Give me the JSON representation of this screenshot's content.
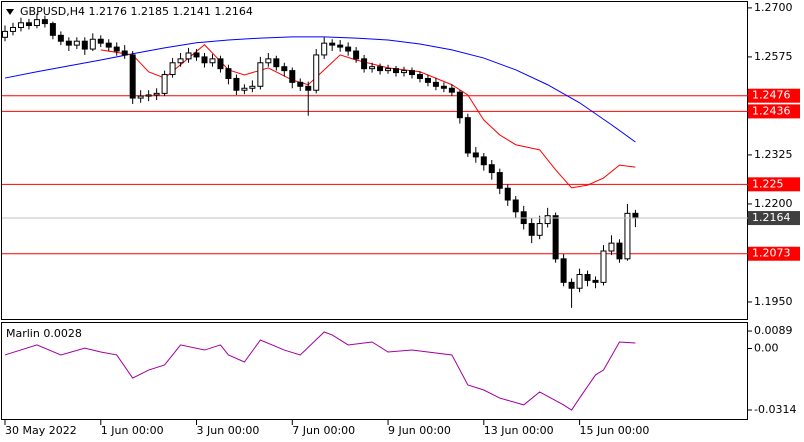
{
  "chart_data": [
    {
      "type": "candlestick",
      "title": "GBPUSD,H4  1.2176 1.2185 1.2141 1.2164",
      "categories": [
        "30 May 2022",
        null,
        null,
        null,
        null,
        null,
        null,
        null,
        null,
        null,
        null,
        null,
        "1 Jun 00:00",
        null,
        null,
        null,
        null,
        null,
        null,
        null,
        null,
        null,
        null,
        null,
        "3 Jun 00:00",
        null,
        null,
        null,
        null,
        null,
        null,
        null,
        null,
        null,
        null,
        null,
        "7 Jun 00:00",
        null,
        null,
        null,
        null,
        null,
        null,
        null,
        null,
        null,
        null,
        null,
        "9 Jun 00:00",
        null,
        null,
        null,
        null,
        null,
        null,
        null,
        null,
        null,
        null,
        null,
        "13 Jun 00:00",
        null,
        null,
        null,
        null,
        null,
        null,
        null,
        null,
        null,
        null,
        null,
        "15 Jun 00:00",
        null,
        null,
        null,
        null,
        null,
        null,
        null
      ],
      "open": [
        1.2625,
        1.264,
        1.265,
        1.2662,
        1.2655,
        1.267,
        1.266,
        1.263,
        1.2615,
        1.2605,
        1.2615,
        1.2595,
        1.262,
        1.261,
        1.26,
        1.259,
        1.258,
        1.247,
        1.2475,
        1.2478,
        1.2482,
        1.253,
        1.256,
        1.257,
        1.2585,
        1.2575,
        1.256,
        1.257,
        1.2545,
        1.252,
        1.249,
        1.2495,
        1.25,
        1.256,
        1.257,
        1.255,
        1.254,
        1.251,
        1.25,
        1.249,
        1.258,
        1.261,
        1.2605,
        1.26,
        1.259,
        1.257,
        1.2545,
        1.255,
        1.254,
        1.2545,
        1.2535,
        1.254,
        1.253,
        1.252,
        1.251,
        1.25,
        1.2495,
        1.2485,
        1.242,
        1.233,
        1.232,
        1.23,
        1.228,
        1.224,
        1.221,
        1.218,
        1.215,
        1.212,
        1.215,
        1.217,
        1.206,
        1.2,
        1.1985,
        1.202,
        1.2005,
        1.2,
        1.208,
        1.21,
        1.206,
        1.2176
      ],
      "high": [
        1.2655,
        1.2662,
        1.2675,
        1.2672,
        1.2685,
        1.268,
        1.2665,
        1.264,
        1.2625,
        1.2625,
        1.2625,
        1.2635,
        1.263,
        1.262,
        1.2612,
        1.2605,
        1.259,
        1.249,
        1.249,
        1.2495,
        1.254,
        1.2572,
        1.2585,
        1.2598,
        1.2595,
        1.2585,
        1.2582,
        1.2578,
        1.2555,
        1.253,
        1.2505,
        1.2515,
        1.2575,
        1.2585,
        1.2578,
        1.256,
        1.2548,
        1.252,
        1.2512,
        1.2595,
        1.2625,
        1.262,
        1.2618,
        1.2612,
        1.26,
        1.258,
        1.256,
        1.2558,
        1.2555,
        1.2552,
        1.255,
        1.2548,
        1.2538,
        1.253,
        1.2522,
        1.251,
        1.2505,
        1.249,
        1.243,
        1.2345,
        1.233,
        1.2312,
        1.229,
        1.225,
        1.222,
        1.2195,
        1.2165,
        1.217,
        1.219,
        1.2178,
        1.2072,
        1.201,
        1.2035,
        1.203,
        1.2015,
        1.2095,
        1.212,
        1.211,
        1.22,
        1.2185
      ],
      "low": [
        1.2615,
        1.263,
        1.264,
        1.2645,
        1.2648,
        1.265,
        1.262,
        1.2605,
        1.259,
        1.2595,
        1.258,
        1.259,
        1.26,
        1.259,
        1.2578,
        1.257,
        1.2455,
        1.2458,
        1.2462,
        1.2465,
        1.2475,
        1.2522,
        1.255,
        1.256,
        1.2565,
        1.2548,
        1.255,
        1.2535,
        1.2505,
        1.2478,
        1.248,
        1.2485,
        1.2492,
        1.255,
        1.254,
        1.2525,
        1.2495,
        1.2488,
        1.2425,
        1.2482,
        1.257,
        1.259,
        1.2588,
        1.2578,
        1.256,
        1.2535,
        1.2535,
        1.253,
        1.2532,
        1.2525,
        1.2525,
        1.252,
        1.251,
        1.25,
        1.249,
        1.2485,
        1.2475,
        1.2405,
        1.232,
        1.2305,
        1.2285,
        1.2262,
        1.2225,
        1.2195,
        1.2165,
        1.2135,
        1.21,
        1.211,
        1.214,
        1.205,
        1.199,
        1.1935,
        1.1975,
        1.199,
        1.1985,
        1.1992,
        1.207,
        1.205,
        1.2055,
        1.2141
      ],
      "close": [
        1.264,
        1.265,
        1.2662,
        1.2655,
        1.267,
        1.266,
        1.263,
        1.2615,
        1.2605,
        1.2615,
        1.2595,
        1.262,
        1.261,
        1.26,
        1.259,
        1.258,
        1.247,
        1.2475,
        1.2478,
        1.2482,
        1.253,
        1.256,
        1.257,
        1.2585,
        1.2575,
        1.256,
        1.257,
        1.2545,
        1.252,
        1.249,
        1.2495,
        1.25,
        1.256,
        1.257,
        1.255,
        1.254,
        1.251,
        1.25,
        1.249,
        1.258,
        1.261,
        1.2605,
        1.26,
        1.259,
        1.257,
        1.2545,
        1.255,
        1.254,
        1.2545,
        1.2535,
        1.254,
        1.253,
        1.252,
        1.251,
        1.25,
        1.2495,
        1.2485,
        1.242,
        1.233,
        1.232,
        1.23,
        1.228,
        1.224,
        1.221,
        1.218,
        1.215,
        1.212,
        1.215,
        1.217,
        1.206,
        1.2,
        1.1985,
        1.202,
        1.2005,
        1.2,
        1.208,
        1.21,
        1.206,
        1.2176,
        1.2164
      ],
      "lines": [
        {
          "color": "#0000ff",
          "x": [
            0,
            4,
            8,
            12,
            16,
            20,
            24,
            28,
            32,
            36,
            40,
            44,
            48,
            52,
            56,
            60,
            64,
            68,
            72,
            76,
            79
          ],
          "values": [
            1.2521,
            1.2537,
            1.2552,
            1.2567,
            1.2583,
            1.2598,
            1.2611,
            1.2618,
            1.2623,
            1.2626,
            1.2626,
            1.2623,
            1.2618,
            1.2608,
            1.2593,
            1.2572,
            1.2542,
            1.2504,
            1.2458,
            1.2402,
            1.2358
          ]
        },
        {
          "color": "#ff0000",
          "x": [
            12,
            16,
            18,
            20,
            25,
            28,
            30,
            33,
            36,
            38,
            40,
            42,
            44,
            48,
            52,
            56,
            58,
            60,
            62,
            64,
            67,
            69,
            71,
            73,
            75,
            77,
            79
          ],
          "values": [
            1.2593,
            1.258,
            1.2537,
            1.2521,
            1.2606,
            1.2542,
            1.2529,
            1.2547,
            1.2516,
            1.2504,
            1.2542,
            1.258,
            1.2567,
            1.2547,
            1.2537,
            1.2504,
            1.2478,
            1.2414,
            1.2376,
            1.2351,
            1.2338,
            1.2287,
            1.2241,
            1.2248,
            1.2266,
            1.2299,
            1.2294
          ]
        }
      ],
      "levels": [
        1.2476,
        1.2436,
        1.225,
        1.2073
      ],
      "level_color": "#ff0000",
      "ylim": [
        1.1904,
        1.2715
      ],
      "yticks": [
        {
          "value": 1.27,
          "label": "1.2700"
        },
        {
          "value": 1.2575,
          "label": "1.2575"
        },
        1.2325,
        {
          "value": 1.22,
          "label": "1.2200"
        },
        {
          "value": 1.195,
          "label": "1.1950"
        }
      ]
    },
    {
      "type": "line",
      "title": "Marlin 0.0028",
      "color": "#a000a0",
      "x": [
        0,
        4,
        7,
        10,
        12,
        14,
        16,
        18,
        20,
        22,
        25,
        27,
        28,
        30,
        32,
        35,
        37,
        40,
        41,
        43,
        46,
        48,
        51,
        53,
        56,
        58,
        60,
        62,
        65,
        67,
        70,
        71,
        72,
        74,
        75,
        77,
        79
      ],
      "values": [
        -0.0033,
        0.0018,
        -0.0033,
        0.0002,
        -0.0018,
        -0.0033,
        -0.0151,
        -0.011,
        -0.0084,
        0.0018,
        -0.0008,
        0.0018,
        -0.0033,
        -0.0069,
        0.0043,
        -0.0008,
        -0.0033,
        0.0084,
        0.0069,
        0.0018,
        0.0033,
        -0.0018,
        -0.0008,
        -0.0018,
        -0.0033,
        -0.0186,
        -0.0212,
        -0.0253,
        -0.0288,
        -0.0222,
        -0.0288,
        -0.0314,
        -0.0253,
        -0.0135,
        -0.011,
        0.0033,
        0.0028
      ],
      "ylim": [
        -0.0365,
        0.013
      ],
      "yticks": [
        0.0089,
        {
          "value": 0,
          "label": "0.00"
        },
        -0.0314
      ]
    }
  ]
}
